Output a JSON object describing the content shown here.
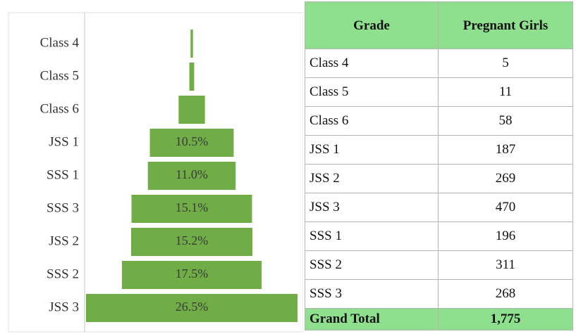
{
  "chart_data": {
    "type": "funnel",
    "categories": [
      "Class 4",
      "Class 5",
      "Class 6",
      "JSS 1",
      "SSS 1",
      "SSS 3",
      "JSS 2",
      "SSS 2",
      "JSS 3"
    ],
    "values": [
      0.3,
      0.6,
      3.3,
      10.5,
      11.0,
      15.1,
      15.2,
      17.5,
      26.5
    ],
    "value_labels": [
      null,
      null,
      null,
      "10.5%",
      "11.0%",
      "15.1%",
      "15.2%",
      "17.5%",
      "26.5%"
    ],
    "color": "#70ad47"
  },
  "table": {
    "header": [
      "Grade",
      "Pregnant Girls"
    ],
    "rows": [
      [
        "Class 4",
        "5"
      ],
      [
        "Class 5",
        "11"
      ],
      [
        "Class 6",
        "58"
      ],
      [
        "JSS 1",
        "187"
      ],
      [
        "JSS 2",
        "269"
      ],
      [
        "JSS 3",
        "470"
      ],
      [
        "SSS 1",
        "196"
      ],
      [
        "SSS 2",
        "311"
      ],
      [
        "SSS 3",
        "268"
      ]
    ],
    "total": [
      "Grand Total",
      "1,775"
    ]
  }
}
